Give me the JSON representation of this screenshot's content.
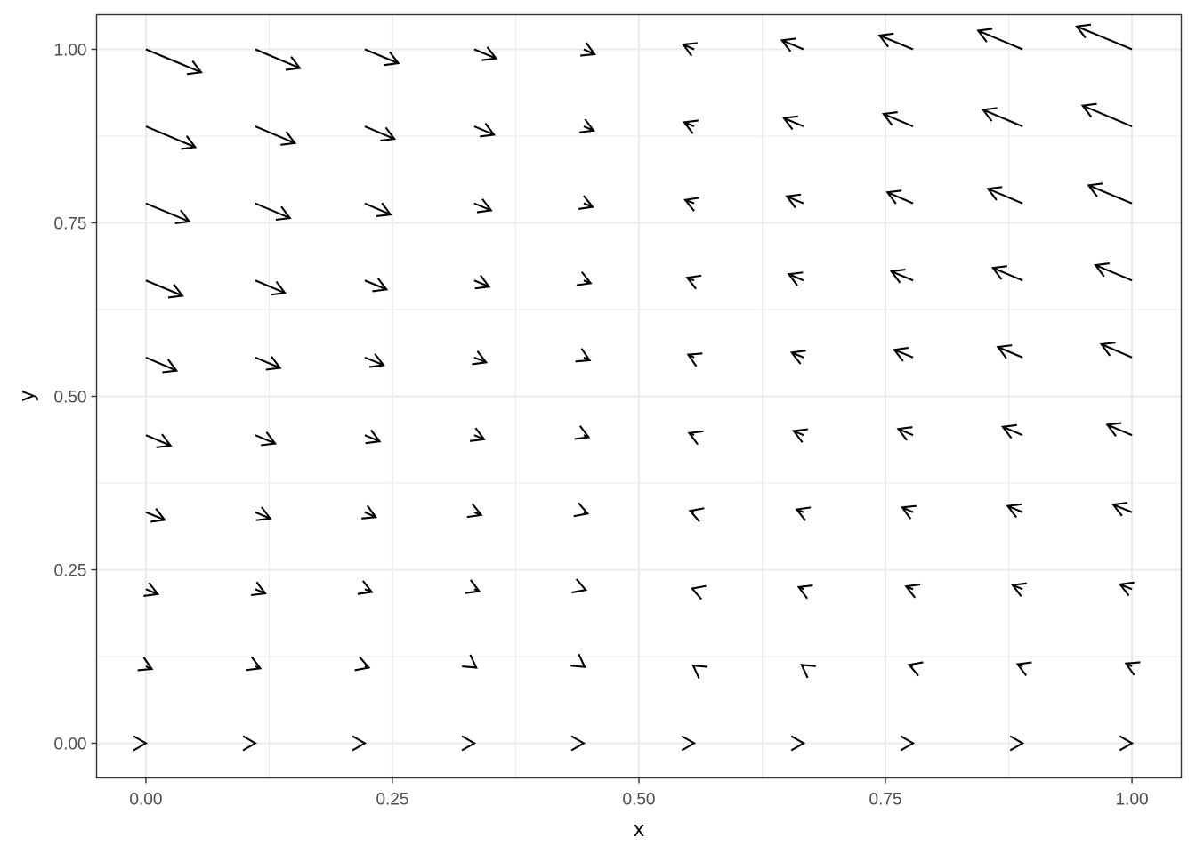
{
  "chart_data": {
    "type": "vector-field",
    "xlabel": "x",
    "ylabel": "y",
    "xlim": [
      -0.05,
      1.05
    ],
    "ylim": [
      -0.05,
      1.05
    ],
    "x_ticks": [
      {
        "value": 0.0,
        "label": "0.00"
      },
      {
        "value": 0.25,
        "label": "0.25"
      },
      {
        "value": 0.5,
        "label": "0.50"
      },
      {
        "value": 0.75,
        "label": "0.75"
      },
      {
        "value": 1.0,
        "label": "1.00"
      }
    ],
    "y_ticks": [
      {
        "value": 0.0,
        "label": "0.00"
      },
      {
        "value": 0.25,
        "label": "0.25"
      },
      {
        "value": 0.5,
        "label": "0.50"
      },
      {
        "value": 0.75,
        "label": "0.75"
      },
      {
        "value": 1.0,
        "label": "1.00"
      }
    ],
    "grid": true,
    "grid_points": [
      0.0,
      0.111,
      0.222,
      0.333,
      0.444,
      0.556,
      0.667,
      0.778,
      0.889,
      1.0
    ],
    "vectors": {
      "x": [
        0.0,
        0.111,
        0.222,
        0.333,
        0.444,
        0.556,
        0.667,
        0.778,
        0.889,
        1.0
      ],
      "y": [
        0.0,
        0.111,
        0.222,
        0.333,
        0.444,
        0.556,
        0.667,
        0.778,
        0.889,
        1.0
      ],
      "dx_rows": [
        [
          0.0,
          0.0,
          0.0,
          0.0,
          0.0,
          0.0,
          0.0,
          0.0,
          0.0,
          0.0
        ],
        [
          0.006,
          0.005,
          0.004,
          0.002,
          0.001,
          -0.001,
          -0.002,
          -0.004,
          -0.005,
          -0.006
        ],
        [
          0.012,
          0.01,
          0.007,
          0.005,
          0.002,
          -0.002,
          -0.005,
          -0.007,
          -0.01,
          -0.012
        ],
        [
          0.019,
          0.015,
          0.011,
          0.007,
          0.004,
          -0.004,
          -0.007,
          -0.011,
          -0.015,
          -0.019
        ],
        [
          0.025,
          0.02,
          0.015,
          0.01,
          0.005,
          -0.005,
          -0.01,
          -0.015,
          -0.02,
          -0.025
        ],
        [
          0.031,
          0.025,
          0.019,
          0.012,
          0.006,
          -0.006,
          -0.012,
          -0.019,
          -0.025,
          -0.031
        ],
        [
          0.037,
          0.03,
          0.022,
          0.015,
          0.007,
          -0.007,
          -0.015,
          -0.022,
          -0.03,
          -0.037
        ],
        [
          0.044,
          0.035,
          0.026,
          0.017,
          0.009,
          -0.009,
          -0.017,
          -0.026,
          -0.035,
          -0.044
        ],
        [
          0.05,
          0.04,
          0.03,
          0.02,
          0.01,
          -0.01,
          -0.02,
          -0.03,
          -0.04,
          -0.05
        ],
        [
          0.056,
          0.045,
          0.034,
          0.022,
          0.011,
          -0.011,
          -0.022,
          -0.034,
          -0.045,
          -0.056
        ]
      ],
      "dy_rows": [
        [
          0.0,
          0.0,
          0.0,
          0.0,
          0.0,
          0.0,
          0.0,
          0.0,
          0.0,
          0.0
        ],
        [
          -0.004,
          -0.003,
          -0.002,
          -0.002,
          -0.001,
          0.001,
          0.002,
          0.002,
          0.003,
          0.004
        ],
        [
          -0.007,
          -0.006,
          -0.004,
          -0.003,
          -0.001,
          0.001,
          0.003,
          0.004,
          0.006,
          0.007
        ],
        [
          -0.011,
          -0.009,
          -0.007,
          -0.004,
          -0.002,
          0.002,
          0.004,
          0.007,
          0.009,
          0.011
        ],
        [
          -0.015,
          -0.012,
          -0.009,
          -0.006,
          -0.003,
          0.003,
          0.006,
          0.009,
          0.012,
          0.015
        ],
        [
          -0.019,
          -0.015,
          -0.011,
          -0.007,
          -0.004,
          0.004,
          0.007,
          0.011,
          0.015,
          0.019
        ],
        [
          -0.022,
          -0.018,
          -0.013,
          -0.009,
          -0.004,
          0.004,
          0.009,
          0.013,
          0.018,
          0.022
        ],
        [
          -0.026,
          -0.021,
          -0.016,
          -0.01,
          -0.005,
          0.005,
          0.01,
          0.016,
          0.021,
          0.026
        ],
        [
          -0.03,
          -0.024,
          -0.018,
          -0.012,
          -0.006,
          0.006,
          0.012,
          0.018,
          0.024,
          0.03
        ],
        [
          -0.033,
          -0.027,
          -0.02,
          -0.013,
          -0.007,
          0.007,
          0.013,
          0.02,
          0.027,
          0.033
        ]
      ]
    }
  }
}
